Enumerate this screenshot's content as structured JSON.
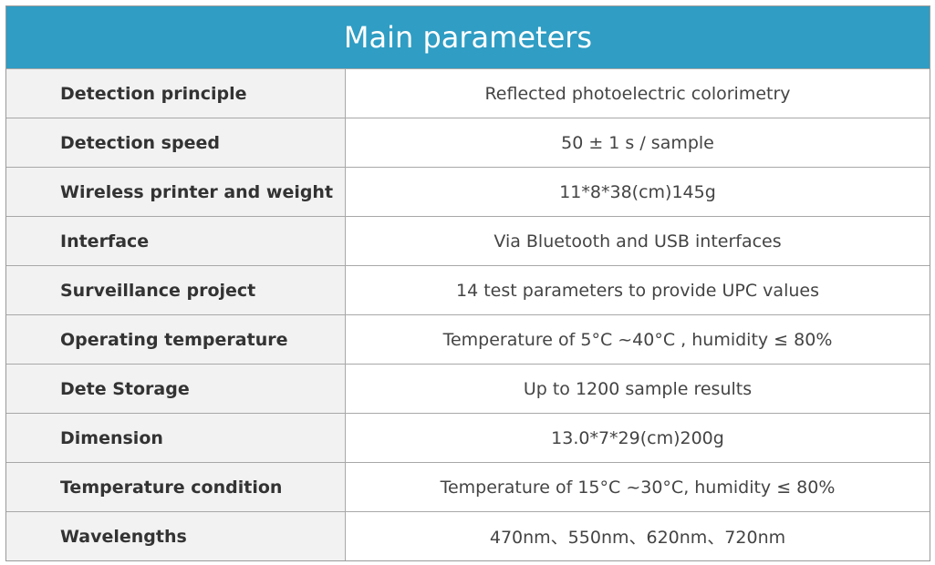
{
  "table": {
    "title": "Main parameters",
    "rows": [
      [
        "Detection principle",
        "Reflected photoelectric colorimetry"
      ],
      [
        "Detection speed",
        "50 ± 1 s / sample"
      ],
      [
        "Wireless printer and weight",
        "11*8*38(cm)145g"
      ],
      [
        "Interface",
        "Via Bluetooth and USB interfaces"
      ],
      [
        "Surveillance project",
        "14 test parameters to provide UPC values"
      ],
      [
        "Operating temperature",
        "Temperature of 5°C ~40°C , humidity ≤ 80%"
      ],
      [
        "Dete Storage",
        "Up to 1200 sample results"
      ],
      [
        "Dimension",
        "13.0*7*29(cm)200g"
      ],
      [
        "Temperature condition",
        "Temperature of 15°C ~30°C, humidity ≤ 80%"
      ],
      [
        "Wavelengths",
        "470nm、550nm、620nm、720nm"
      ]
    ]
  }
}
